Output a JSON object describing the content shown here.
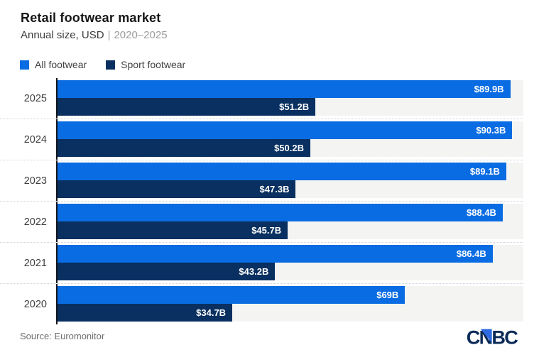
{
  "header": {
    "title": "Retail footwear market",
    "subtitle_left": "Annual size, USD",
    "subtitle_sep": "|",
    "subtitle_right": "2020–2025"
  },
  "legend": [
    {
      "label": "All footwear",
      "color": "#0a6ce2"
    },
    {
      "label": "Sport footwear",
      "color": "#093060"
    }
  ],
  "chart_data": {
    "type": "bar",
    "orientation": "horizontal",
    "title": "Retail footwear market",
    "subtitle": "Annual size, USD | 2020–2025",
    "categories": [
      "2025",
      "2024",
      "2023",
      "2022",
      "2021",
      "2020"
    ],
    "series": [
      {
        "name": "All footwear",
        "color": "#0a6ce2",
        "values": [
          89.9,
          90.3,
          89.1,
          88.4,
          86.4,
          69.0
        ],
        "labels": [
          "$89.9B",
          "$90.3B",
          "$89.1B",
          "$88.4B",
          "$86.4B",
          "$69B"
        ]
      },
      {
        "name": "Sport footwear",
        "color": "#093060",
        "values": [
          51.2,
          50.2,
          47.3,
          45.7,
          43.2,
          34.7
        ],
        "labels": [
          "$51.2B",
          "$50.2B",
          "$47.3B",
          "$45.7B",
          "$43.2B",
          "$34.7B"
        ]
      }
    ],
    "xlim": [
      0,
      92.5
    ],
    "value_unit": "USD billions",
    "grid": "off",
    "legend_position": "top-left",
    "track_color": "#f4f4f2",
    "axis_line_color": "#14161c",
    "separator_style": "dotted"
  },
  "footer": {
    "source": "Source: Euromonitor",
    "logo_text": "CNBC",
    "logo_navy": "#0b2a57",
    "logo_blue": "#2e6be2"
  }
}
